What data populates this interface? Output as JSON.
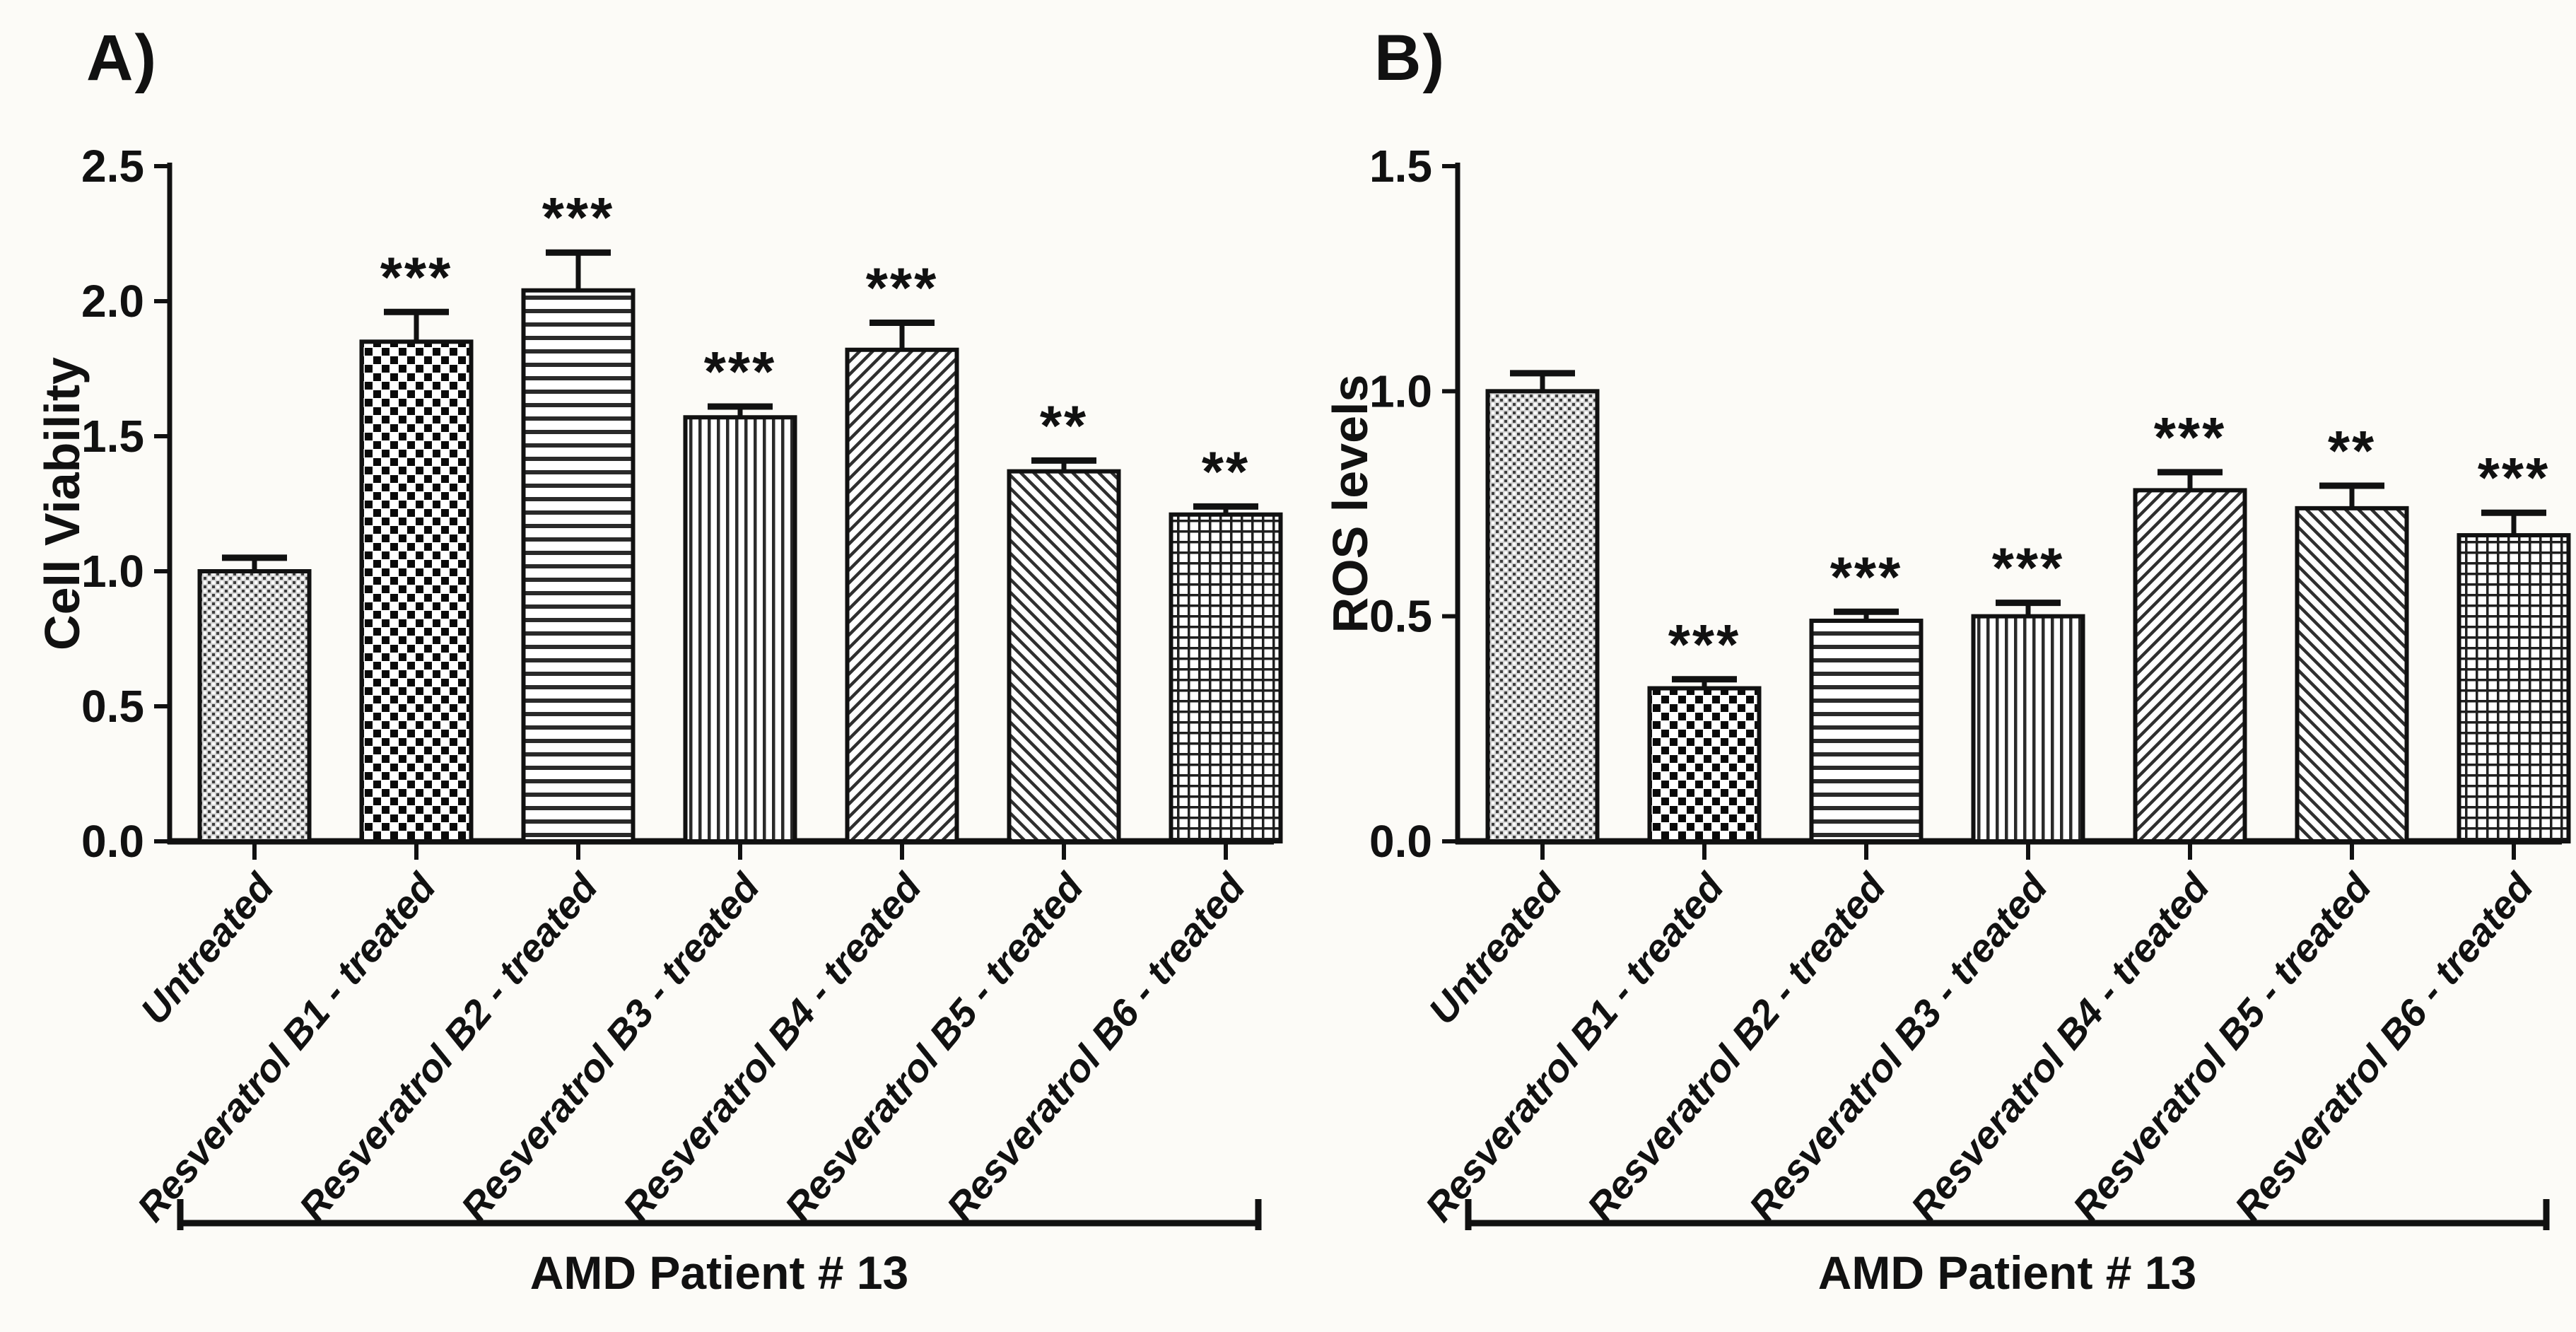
{
  "figure": {
    "background": "#fcfbf7",
    "ink": "#111111",
    "bar_fill_style": "black-and-white patterns on white",
    "error_bar_style": "upper caps only",
    "significance_key": "** and *** asterisks above error bars"
  },
  "chart_data": [
    {
      "type": "bar",
      "panel_label": "A)",
      "title": "",
      "ylabel": "Cell Viability",
      "xlabel": "AMD Patient # 13",
      "ylim": [
        0,
        2.5
      ],
      "ytick_labels": [
        "0.0",
        "0.5",
        "1.0",
        "1.5",
        "2.0",
        "2.5"
      ],
      "grid": false,
      "legend": "none",
      "categories": [
        "Untreated",
        "Resveratrol B1 - treated",
        "Resveratrol B2 - treated",
        "Resveratrol B3 - treated",
        "Resveratrol B4 - treated",
        "Resveratrol B5 - treated",
        "Resveratrol B6 - treated"
      ],
      "values": [
        1.0,
        1.85,
        2.04,
        1.57,
        1.82,
        1.37,
        1.21
      ],
      "errors": [
        0.05,
        0.11,
        0.14,
        0.04,
        0.1,
        0.04,
        0.03
      ],
      "significance": [
        "",
        "***",
        "***",
        "***",
        "***",
        "**",
        "**"
      ],
      "patterns": [
        "fine-dots",
        "checkerboard",
        "horizontal-lines",
        "vertical-lines",
        "diagonal-up",
        "diagonal-down",
        "grid"
      ]
    },
    {
      "type": "bar",
      "panel_label": "B)",
      "title": "",
      "ylabel": "ROS levels",
      "xlabel": "AMD Patient # 13",
      "ylim": [
        0,
        1.5
      ],
      "ytick_labels": [
        "0.0",
        "0.5",
        "1.0",
        "1.5"
      ],
      "grid": false,
      "legend": "none",
      "categories": [
        "Untreated",
        "Resveratrol B1 - treated",
        "Resveratrol B2 - treated",
        "Resveratrol B3 - treated",
        "Resveratrol B4 - treated",
        "Resveratrol B5 - treated",
        "Resveratrol B6 - treated"
      ],
      "values": [
        1.0,
        0.34,
        0.49,
        0.5,
        0.78,
        0.74,
        0.68
      ],
      "errors": [
        0.04,
        0.02,
        0.02,
        0.03,
        0.04,
        0.05,
        0.05
      ],
      "significance": [
        "",
        "***",
        "***",
        "***",
        "***",
        "**",
        "***"
      ],
      "patterns": [
        "fine-dots",
        "checkerboard",
        "horizontal-lines",
        "vertical-lines",
        "diagonal-up",
        "diagonal-down",
        "grid"
      ]
    }
  ]
}
